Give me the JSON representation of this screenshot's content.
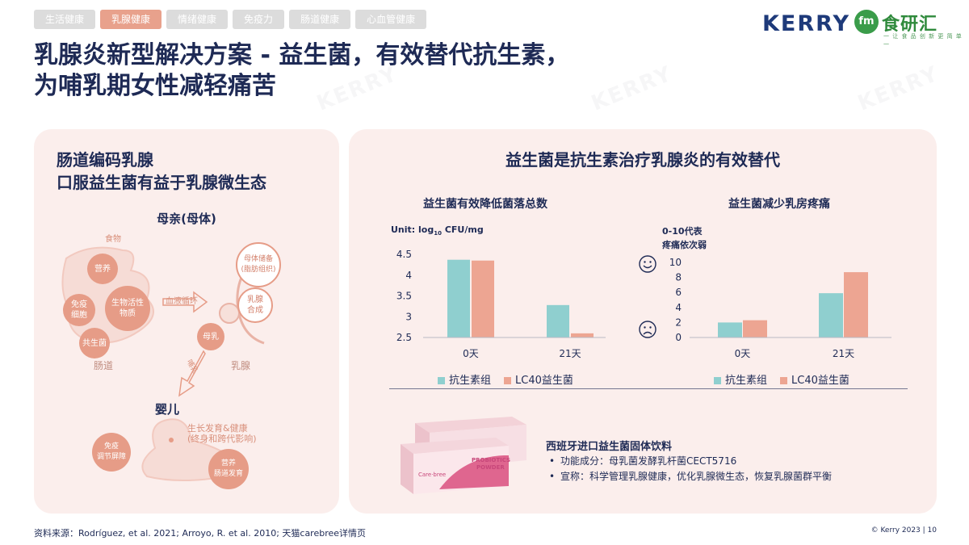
{
  "tabs": [
    {
      "label": "生活健康"
    },
    {
      "label": "乳腺健康"
    },
    {
      "label": "情绪健康"
    },
    {
      "label": "免疫力"
    },
    {
      "label": "肠道健康"
    },
    {
      "label": "心血管健康"
    }
  ],
  "logo": {
    "brand": "KERRY",
    "partner_badge": "fm",
    "partner": "食研汇",
    "partner_tagline": "一 让 食 品 创 新 更 简 单 一"
  },
  "title": {
    "line1": "乳腺炎新型解决方案 - 益生菌，有效替代抗生素，",
    "line2": "为哺乳期女性减轻痛苦"
  },
  "watermark": "KERRY",
  "left_panel": {
    "title_line1": "肠道编码乳腺",
    "title_line2": "口服益生菌有益于乳腺微生态",
    "mother": "母亲(母体)",
    "food": "食物",
    "nutrition": "营养",
    "immune_cells_1": "免疫",
    "immune_cells_2": "细胞",
    "bioactive_1": "生物活性",
    "bioactive_2": "物质",
    "commensal": "共生菌",
    "gut": "肠道",
    "blood_circulation": "血液循环",
    "maternal_store_1": "母体储备",
    "maternal_store_2": "(脂肪组织)",
    "milk_synth_1": "乳腺",
    "milk_synth_2": "合成",
    "breast_milk": "母乳",
    "mammary": "乳腺",
    "feeding": "哺乳",
    "infant": "婴儿",
    "growth_1": "生长发育&健康",
    "growth_2": "(终身和跨代影响)",
    "immune_barrier_1": "免疫",
    "immune_barrier_2": "调节屏障",
    "gut_dev_1": "营养",
    "gut_dev_2": "肠道发育"
  },
  "right_panel": {
    "title": "益生菌是抗生素治疗乳腺炎的有效替代",
    "product": {
      "title": "西班牙进口益生菌固体饮料",
      "item1": "功能成分：母乳菌发酵乳杆菌CECT5716",
      "item2": "宣称：科学管理乳腺健康，优化乳腺微生态，恢复乳腺菌群平衡",
      "box_text1": "PROBIOTICS",
      "box_text2": "POWDER",
      "box_brand": "Care·bree"
    }
  },
  "chart_data": [
    {
      "type": "bar",
      "title": "益生菌有效降低菌落总数",
      "unit_prefix": "Unit: log",
      "unit_sub": "10",
      "unit_suffix": " CFU/mg",
      "categories": [
        "0天",
        "21天"
      ],
      "series": [
        {
          "name": "抗生素组",
          "color": "#8fcfcf",
          "values": [
            4.37,
            3.28
          ]
        },
        {
          "name": "LC40益生菌",
          "color": "#eda592",
          "values": [
            4.35,
            2.6
          ]
        }
      ],
      "yticks": [
        "2.5",
        "3",
        "3.5",
        "4",
        "4.5"
      ],
      "ylim": [
        2.5,
        4.5
      ]
    },
    {
      "type": "bar",
      "title": "益生菌减少乳房疼痛",
      "scale_label_1": "0-10代表",
      "scale_label_2": "疼痛依次弱",
      "categories": [
        "0天",
        "21天"
      ],
      "series": [
        {
          "name": "抗生素组",
          "color": "#8fcfcf",
          "values": [
            2.0,
            5.9
          ]
        },
        {
          "name": "LC40益生菌",
          "color": "#eda592",
          "values": [
            2.3,
            8.7
          ]
        }
      ],
      "yticks": [
        "0",
        "2",
        "4",
        "6",
        "8",
        "10"
      ],
      "ylim": [
        0,
        10
      ],
      "icon_top": "smile-icon",
      "icon_bottom": "sad-icon"
    }
  ],
  "footer": {
    "source": "资料来源：Rodríguez, et al. 2021; Arroyo, R. et al. 2010; 天猫carebree详情页",
    "copyright": "© Kerry 2023  |  10"
  }
}
